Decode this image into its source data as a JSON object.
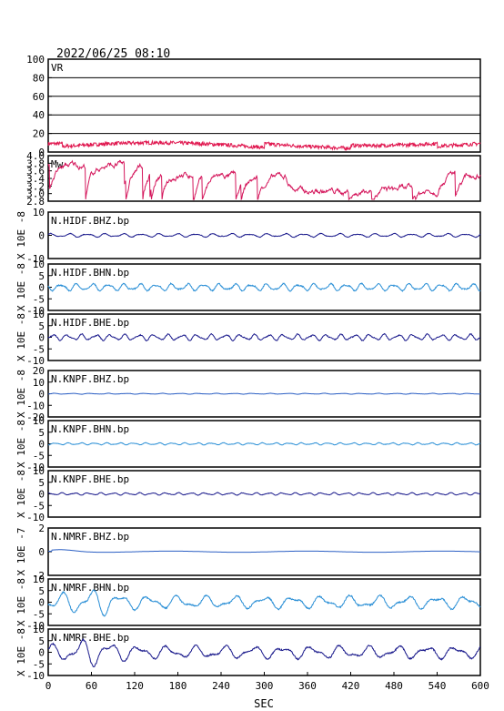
{
  "header": {
    "datetime": "2022/06/25 08:10"
  },
  "x_axis": {
    "label": "SEC",
    "range": [
      0,
      600
    ],
    "ticks": [
      "0",
      "60",
      "120",
      "180",
      "240",
      "300",
      "360",
      "420",
      "480",
      "540",
      "600"
    ]
  },
  "colors": {
    "vr": "#e0174f",
    "mw": "#d4145a",
    "dark_blue": "#1a1a8c",
    "mid_blue": "#2b5fc4",
    "light_blue": "#2a8fd6",
    "grid": "#000000"
  },
  "chart_data": [
    {
      "type": "line",
      "name": "VR",
      "label": "VR",
      "ylim": [
        0,
        100
      ],
      "grid": true,
      "ticks": [
        "0",
        "20",
        "40",
        "60",
        "80",
        "100"
      ],
      "color": "vr",
      "style": "vr"
    },
    {
      "type": "line",
      "name": "Mw",
      "label": "Mw",
      "ylim": [
        2.8,
        4.0
      ],
      "grid": false,
      "ticks": [
        "2.8",
        "3.0",
        "3.2",
        "3.4",
        "3.6",
        "3.8",
        "4.0"
      ],
      "color": "mw",
      "style": "mw"
    },
    {
      "type": "line",
      "name": "N.HIDF.BHZ.bp",
      "label": "N.HIDF.BHZ.bp",
      "ylabel": "X 10E -8",
      "ylim": [
        -10,
        10
      ],
      "ticks": [
        "-10",
        "0",
        "10"
      ],
      "amp": 0.6,
      "period": 25,
      "color": "dark_blue",
      "style": "wave"
    },
    {
      "type": "line",
      "name": "N.HIDF.BHN.bp",
      "label": "N.HIDF.BHN.bp",
      "ylabel": "X 10E -8",
      "ylim": [
        -10,
        10
      ],
      "ticks": [
        "-10",
        "-5",
        "0",
        "5",
        "10"
      ],
      "amp": 1.2,
      "period": 22,
      "color": "light_blue",
      "style": "wave"
    },
    {
      "type": "line",
      "name": "N.HIDF.BHE.bp",
      "label": "N.HIDF.BHE.bp",
      "ylabel": "X 10E -8",
      "ylim": [
        -10,
        10
      ],
      "ticks": [
        "-10",
        "-5",
        "0",
        "5",
        "10"
      ],
      "amp": 1.0,
      "period": 20,
      "color": "dark_blue",
      "style": "wave"
    },
    {
      "type": "line",
      "name": "N.KNPF.BHZ.bp",
      "label": "N.KNPF.BHZ.bp",
      "ylabel": "X 10E -8",
      "ylim": [
        -20,
        20
      ],
      "ticks": [
        "-20",
        "-10",
        "0",
        "10",
        "20"
      ],
      "amp": 0.3,
      "period": 25,
      "color": "mid_blue",
      "style": "wave"
    },
    {
      "type": "line",
      "name": "N.KNPF.BHN.bp",
      "label": "N.KNPF.BHN.bp",
      "ylabel": "X 10E -8",
      "ylim": [
        -10,
        10
      ],
      "ticks": [
        "-10",
        "-5",
        "0",
        "5",
        "10"
      ],
      "amp": 0.35,
      "period": 18,
      "color": "light_blue",
      "style": "wave"
    },
    {
      "type": "line",
      "name": "N.KNPF.BHE.bp",
      "label": "N.KNPF.BHE.bp",
      "ylabel": "X 10E -8",
      "ylim": [
        -10,
        10
      ],
      "ticks": [
        "-10",
        "-5",
        "0",
        "5",
        "10"
      ],
      "amp": 0.4,
      "period": 18,
      "color": "dark_blue",
      "style": "wave"
    },
    {
      "type": "line",
      "name": "N.NMRF.BHZ.bp",
      "label": "N.NMRF.BHZ.bp",
      "ylabel": "X 10E -7",
      "ylim": [
        -2,
        2
      ],
      "ticks": [
        "-2",
        "0",
        "2"
      ],
      "amp": 0.05,
      "period": 30,
      "color": "mid_blue",
      "style": "bump"
    },
    {
      "type": "line",
      "name": "N.NMRF.BHN.bp",
      "label": "N.NMRF.BHN.bp",
      "ylabel": "X 10E -8",
      "ylim": [
        -10,
        10
      ],
      "ticks": [
        "-10",
        "-5",
        "0",
        "5",
        "10"
      ],
      "amp": 2.0,
      "period": 40,
      "color": "light_blue",
      "style": "wave_big"
    },
    {
      "type": "line",
      "name": "N.NMRF.BHE.bp",
      "label": "N.NMRF.BHE.bp",
      "ylabel": "X 10E -8",
      "ylim": [
        -10,
        10
      ],
      "ticks": [
        "-10",
        "-5",
        "0",
        "5",
        "10"
      ],
      "amp": 2.0,
      "period": 40,
      "color": "dark_blue",
      "style": "wave_big"
    }
  ]
}
